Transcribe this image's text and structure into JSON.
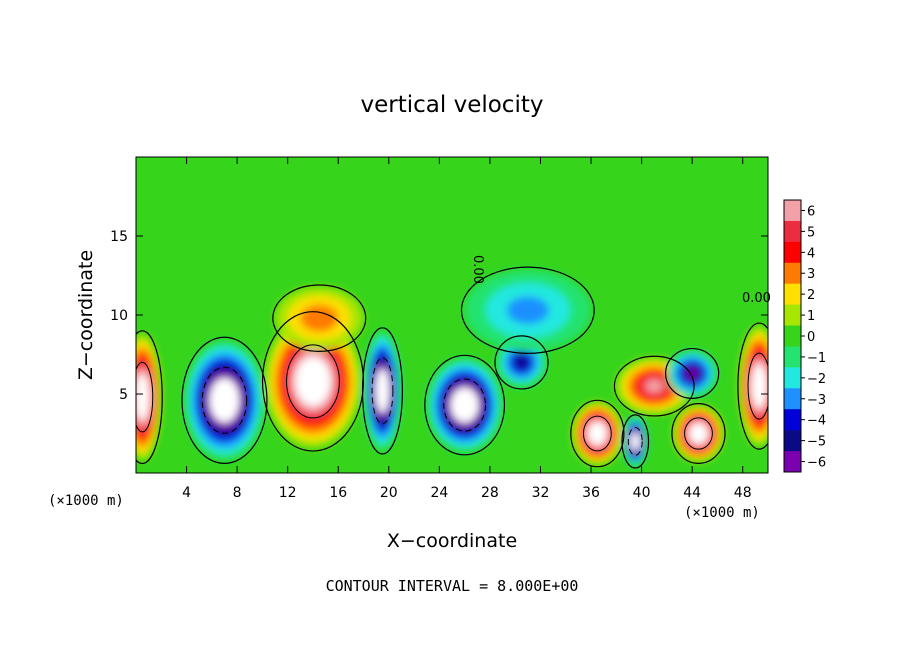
{
  "chart_data": {
    "type": "heatmap",
    "title": "vertical velocity",
    "xlabel": "X−coordinate",
    "ylabel": "Z−coordinate",
    "x_unit_left": "(×1000 m)",
    "x_unit_right": "(×1000 m)",
    "xlim": [
      0,
      50
    ],
    "ylim": [
      0,
      20
    ],
    "x_ticks": [
      4,
      8,
      12,
      16,
      20,
      24,
      28,
      32,
      36,
      40,
      44,
      48
    ],
    "y_ticks": [
      5,
      10,
      15
    ],
    "contour_label": "0.00",
    "footer": "CONTOUR INTERVAL = 8.000E+00",
    "colorbar": {
      "levels": [
        6,
        5,
        4,
        3,
        2,
        1,
        0,
        -1,
        -2,
        -3,
        -4,
        -5,
        -6
      ],
      "labels": [
        "6",
        "5",
        "4",
        "3",
        "2",
        "1",
        "0",
        "−1",
        "−2",
        "−3",
        "−4",
        "−5",
        "−6"
      ],
      "colors": [
        "#f4a0a8",
        "#ec2d3f",
        "#ff0000",
        "#ff7a00",
        "#ffe000",
        "#a6e600",
        "#36d41b",
        "#24e36f",
        "#22e8e0",
        "#1e90ff",
        "#0000d8",
        "#0a0a86",
        "#7a00b0"
      ]
    },
    "features": [
      {
        "kind": "updraft",
        "x": 0.5,
        "z": 4.8,
        "rx": 1.5,
        "rz": 4.0,
        "peak": 9
      },
      {
        "kind": "downdraft",
        "x": 7.0,
        "z": 4.6,
        "rx": 3.2,
        "rz": 3.8,
        "peak": -9
      },
      {
        "kind": "updraft",
        "x": 14.0,
        "z": 5.8,
        "rx": 3.8,
        "rz": 4.2,
        "peak": 9
      },
      {
        "kind": "updraft",
        "x": 14.5,
        "z": 9.8,
        "rx": 3.5,
        "rz": 2.0,
        "peak": 3
      },
      {
        "kind": "downdraft",
        "x": 19.5,
        "z": 5.2,
        "rx": 1.5,
        "rz": 3.8,
        "peak": -9
      },
      {
        "kind": "downdraft",
        "x": 26.0,
        "z": 4.3,
        "rx": 3.0,
        "rz": 3.0,
        "peak": -9
      },
      {
        "kind": "downdraft",
        "x": 30.5,
        "z": 7.0,
        "rx": 2.0,
        "rz": 1.6,
        "peak": -5
      },
      {
        "kind": "downdraft",
        "x": 31.0,
        "z": 10.3,
        "rx": 5.0,
        "rz": 2.6,
        "peak": -2.5
      },
      {
        "kind": "updraft",
        "x": 36.5,
        "z": 2.5,
        "rx": 2.0,
        "rz": 2.0,
        "peak": 9
      },
      {
        "kind": "downdraft",
        "x": 39.5,
        "z": 2.0,
        "rx": 1.0,
        "rz": 1.6,
        "peak": -9
      },
      {
        "kind": "updraft",
        "x": 41.0,
        "z": 5.5,
        "rx": 3.0,
        "rz": 1.8,
        "peak": 6
      },
      {
        "kind": "updraft",
        "x": 44.5,
        "z": 2.5,
        "rx": 2.0,
        "rz": 1.8,
        "peak": 9
      },
      {
        "kind": "downdraft",
        "x": 44.0,
        "z": 6.3,
        "rx": 2.0,
        "rz": 1.5,
        "peak": -6
      },
      {
        "kind": "updraft",
        "x": 49.3,
        "z": 5.5,
        "rx": 1.6,
        "rz": 3.8,
        "peak": 9
      }
    ]
  }
}
